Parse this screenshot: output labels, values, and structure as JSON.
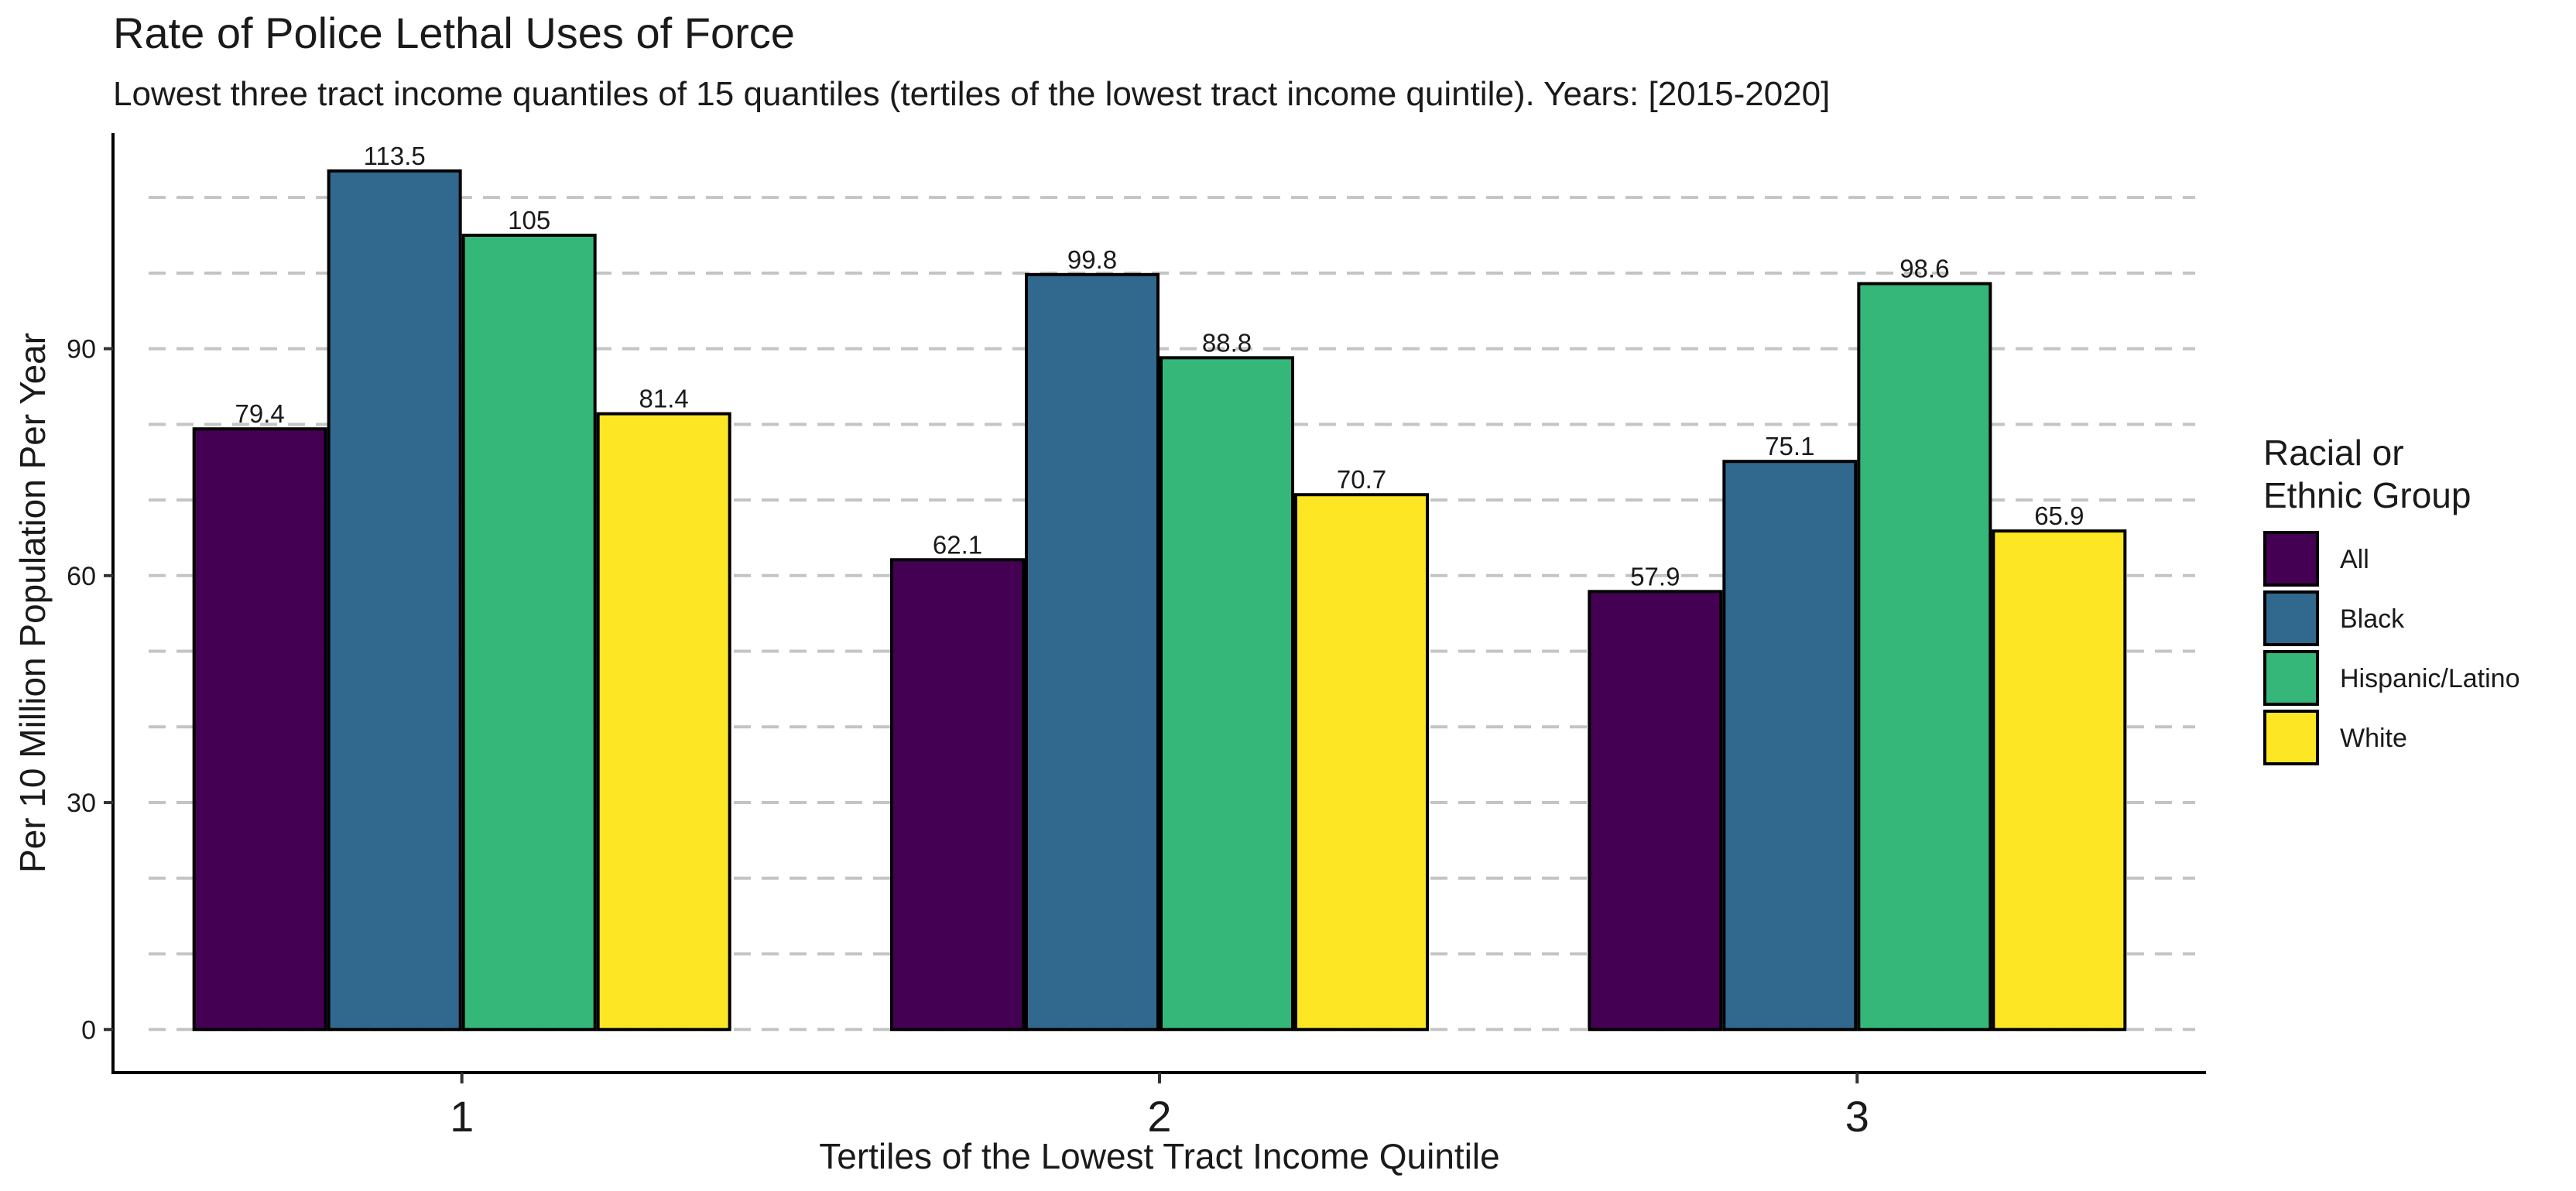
{
  "chart_data": {
    "type": "bar",
    "title": "Rate of Police Lethal Uses of Force",
    "subtitle": "Lowest three tract income quantiles of 15 quantiles (tertiles of the lowest tract income quintile). Years: [2015-2020]",
    "xlabel": "Tertiles of the Lowest Tract Income Quintile",
    "ylabel": "Per 10 Million Population Per Year",
    "categories": [
      "1",
      "2",
      "3"
    ],
    "series": [
      {
        "name": "All",
        "color": "#440154",
        "values": [
          79.4,
          62.1,
          57.9
        ],
        "labels": [
          "79.4",
          "62.1",
          "57.9"
        ]
      },
      {
        "name": "Black",
        "color": "#31688E",
        "values": [
          113.5,
          99.8,
          75.1
        ],
        "labels": [
          "113.5",
          "99.8",
          "75.1"
        ]
      },
      {
        "name": "Hispanic/Latino",
        "color": "#35B779",
        "values": [
          105,
          88.8,
          98.6
        ],
        "labels": [
          "105",
          "88.8",
          "98.6"
        ]
      },
      {
        "name": "White",
        "color": "#FDE725",
        "values": [
          81.4,
          70.7,
          65.9
        ],
        "labels": [
          "81.4",
          "70.7",
          "65.9"
        ]
      }
    ],
    "yticks": [
      0,
      30,
      60,
      90
    ],
    "ylim": [
      -5.7,
      118.5
    ],
    "grid": {
      "major_horizontal": true,
      "dashed": true,
      "step": 10
    },
    "legend": {
      "title_lines": [
        "Racial or",
        "Ethnic Group"
      ],
      "position": "right"
    }
  }
}
